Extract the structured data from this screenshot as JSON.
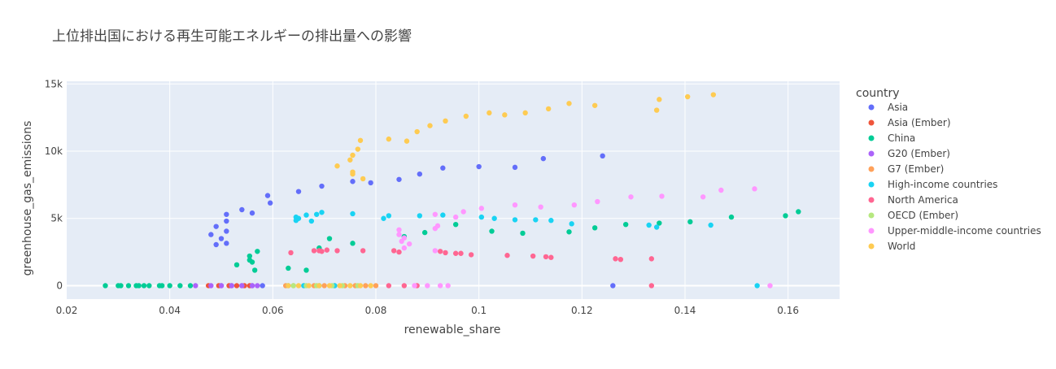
{
  "chart_data": {
    "type": "scatter",
    "title": "上位排出国における再生可能エネルギーの排出量への影響",
    "xlabel": "renewable_share",
    "ylabel": "greenhouse_gas_emissions",
    "xlim": [
      0.02,
      0.17
    ],
    "ylim": [
      -1000,
      15200
    ],
    "x_ticks": [
      0.02,
      0.04,
      0.06,
      0.08,
      0.1,
      0.12,
      0.14,
      0.16
    ],
    "x_tick_labels": [
      "0.02",
      "0.04",
      "0.06",
      "0.08",
      "0.1",
      "0.12",
      "0.14",
      "0.16"
    ],
    "y_ticks": [
      0,
      5000,
      10000,
      15000
    ],
    "y_tick_labels": [
      "0",
      "5k",
      "10k",
      "15k"
    ],
    "grid": true,
    "legend_title": "country",
    "legend_position": "right",
    "series": [
      {
        "name": "Asia",
        "color": "#636efa",
        "points": [
          [
            0.048,
            3800
          ],
          [
            0.049,
            3050
          ],
          [
            0.049,
            4400
          ],
          [
            0.05,
            3500
          ],
          [
            0.051,
            3150
          ],
          [
            0.051,
            4050
          ],
          [
            0.051,
            4800
          ],
          [
            0.051,
            5300
          ],
          [
            0.054,
            5650
          ],
          [
            0.056,
            5400
          ],
          [
            0.059,
            6700
          ],
          [
            0.0595,
            6150
          ],
          [
            0.065,
            7000
          ],
          [
            0.0695,
            7400
          ],
          [
            0.0755,
            7750
          ],
          [
            0.079,
            7650
          ],
          [
            0.0845,
            7900
          ],
          [
            0.0885,
            8300
          ],
          [
            0.093,
            8750
          ],
          [
            0.1,
            8850
          ],
          [
            0.107,
            8800
          ],
          [
            0.1125,
            9450
          ],
          [
            0.124,
            9650
          ],
          [
            0.126,
            0
          ],
          [
            0.05,
            0
          ],
          [
            0.052,
            0
          ],
          [
            0.054,
            0
          ],
          [
            0.056,
            0
          ],
          [
            0.058,
            0
          ]
        ]
      },
      {
        "name": "Asia (Ember)",
        "color": "#EF553B",
        "points": [
          [
            0.0475,
            0
          ],
          [
            0.0495,
            0
          ],
          [
            0.0515,
            0
          ],
          [
            0.053,
            0
          ],
          [
            0.0545,
            0
          ],
          [
            0.0555,
            0
          ]
        ]
      },
      {
        "name": "China",
        "color": "#00cc96",
        "points": [
          [
            0.0275,
            0
          ],
          [
            0.03,
            0
          ],
          [
            0.0305,
            0
          ],
          [
            0.032,
            0
          ],
          [
            0.0335,
            0
          ],
          [
            0.034,
            0
          ],
          [
            0.035,
            0
          ],
          [
            0.036,
            0
          ],
          [
            0.038,
            0
          ],
          [
            0.0385,
            0
          ],
          [
            0.04,
            0
          ],
          [
            0.042,
            0
          ],
          [
            0.044,
            0
          ],
          [
            0.053,
            1550
          ],
          [
            0.0555,
            1900
          ],
          [
            0.0555,
            2200
          ],
          [
            0.056,
            1750
          ],
          [
            0.0565,
            1150
          ],
          [
            0.057,
            2550
          ],
          [
            0.063,
            1300
          ],
          [
            0.0665,
            1150
          ],
          [
            0.069,
            2800
          ],
          [
            0.071,
            3500
          ],
          [
            0.0755,
            3150
          ],
          [
            0.0855,
            3650
          ],
          [
            0.0895,
            3950
          ],
          [
            0.0955,
            4550
          ],
          [
            0.1025,
            4050
          ],
          [
            0.1085,
            3900
          ],
          [
            0.1175,
            4000
          ],
          [
            0.1225,
            4300
          ],
          [
            0.1285,
            4550
          ],
          [
            0.135,
            4650
          ],
          [
            0.141,
            4750
          ],
          [
            0.149,
            5100
          ],
          [
            0.1595,
            5200
          ],
          [
            0.162,
            5500
          ]
        ]
      },
      {
        "name": "G20 (Ember)",
        "color": "#ab63fa",
        "points": [
          [
            0.045,
            0
          ],
          [
            0.048,
            0
          ],
          [
            0.05,
            0
          ],
          [
            0.052,
            0
          ],
          [
            0.054,
            0
          ],
          [
            0.056,
            0
          ],
          [
            0.057,
            0
          ]
        ]
      },
      {
        "name": "G7 (Ember)",
        "color": "#FFA15A",
        "points": [
          [
            0.0625,
            0
          ],
          [
            0.064,
            0
          ],
          [
            0.066,
            0
          ],
          [
            0.068,
            0
          ],
          [
            0.07,
            0
          ],
          [
            0.072,
            0
          ],
          [
            0.074,
            0
          ],
          [
            0.076,
            0
          ],
          [
            0.078,
            0
          ],
          [
            0.08,
            0
          ]
        ]
      },
      {
        "name": "High-income countries",
        "color": "#19d3f3",
        "points": [
          [
            0.0645,
            4850
          ],
          [
            0.0645,
            5100
          ],
          [
            0.065,
            5000
          ],
          [
            0.0665,
            5250
          ],
          [
            0.0675,
            4800
          ],
          [
            0.0685,
            5300
          ],
          [
            0.0695,
            5450
          ],
          [
            0.0755,
            5350
          ],
          [
            0.0815,
            5000
          ],
          [
            0.0825,
            5200
          ],
          [
            0.0885,
            5200
          ],
          [
            0.093,
            5250
          ],
          [
            0.1005,
            5100
          ],
          [
            0.103,
            5000
          ],
          [
            0.107,
            4900
          ],
          [
            0.111,
            4900
          ],
          [
            0.114,
            4850
          ],
          [
            0.118,
            4600
          ],
          [
            0.133,
            4500
          ],
          [
            0.1345,
            4350
          ],
          [
            0.145,
            4500
          ],
          [
            0.154,
            0
          ],
          [
            0.063,
            0
          ],
          [
            0.066,
            0
          ],
          [
            0.069,
            0
          ],
          [
            0.072,
            0
          ]
        ]
      },
      {
        "name": "North America",
        "color": "#FF6692",
        "points": [
          [
            0.0635,
            2450
          ],
          [
            0.068,
            2600
          ],
          [
            0.069,
            2600
          ],
          [
            0.0695,
            2550
          ],
          [
            0.0705,
            2650
          ],
          [
            0.0725,
            2600
          ],
          [
            0.0775,
            2600
          ],
          [
            0.0835,
            2600
          ],
          [
            0.0845,
            2500
          ],
          [
            0.0925,
            2550
          ],
          [
            0.0935,
            2450
          ],
          [
            0.0955,
            2400
          ],
          [
            0.0965,
            2400
          ],
          [
            0.0985,
            2300
          ],
          [
            0.1055,
            2250
          ],
          [
            0.1105,
            2200
          ],
          [
            0.113,
            2150
          ],
          [
            0.114,
            2100
          ],
          [
            0.1265,
            2000
          ],
          [
            0.1275,
            1950
          ],
          [
            0.1335,
            2000
          ],
          [
            0.1335,
            0
          ],
          [
            0.0825,
            0
          ],
          [
            0.0855,
            0
          ],
          [
            0.088,
            0
          ]
        ]
      },
      {
        "name": "OECD (Ember)",
        "color": "#B6E880",
        "points": [
          [
            0.064,
            0
          ],
          [
            0.0665,
            0
          ],
          [
            0.0685,
            0
          ],
          [
            0.0715,
            0
          ],
          [
            0.0735,
            0
          ],
          [
            0.0765,
            0
          ]
        ]
      },
      {
        "name": "Upper-middle-income countries",
        "color": "#FF97FF",
        "points": [
          [
            0.0845,
            3800
          ],
          [
            0.0845,
            4150
          ],
          [
            0.085,
            3300
          ],
          [
            0.0855,
            3550
          ],
          [
            0.0865,
            3100
          ],
          [
            0.0855,
            2800
          ],
          [
            0.0915,
            4250
          ],
          [
            0.0915,
            5300
          ],
          [
            0.092,
            4450
          ],
          [
            0.0915,
            2600
          ],
          [
            0.0955,
            5100
          ],
          [
            0.097,
            5500
          ],
          [
            0.1005,
            5750
          ],
          [
            0.107,
            6000
          ],
          [
            0.112,
            5850
          ],
          [
            0.1185,
            6000
          ],
          [
            0.123,
            6250
          ],
          [
            0.1295,
            6600
          ],
          [
            0.1355,
            6650
          ],
          [
            0.1435,
            6600
          ],
          [
            0.147,
            7100
          ],
          [
            0.1535,
            7200
          ],
          [
            0.1565,
            0
          ],
          [
            0.09,
            0
          ],
          [
            0.0925,
            0
          ],
          [
            0.094,
            0
          ],
          [
            0.0875,
            0
          ]
        ]
      },
      {
        "name": "World",
        "color": "#FECB52",
        "points": [
          [
            0.0725,
            8900
          ],
          [
            0.075,
            9350
          ],
          [
            0.0755,
            9700
          ],
          [
            0.0755,
            8300
          ],
          [
            0.0755,
            8450
          ],
          [
            0.0765,
            10150
          ],
          [
            0.077,
            10800
          ],
          [
            0.0775,
            7950
          ],
          [
            0.0825,
            10900
          ],
          [
            0.086,
            10750
          ],
          [
            0.088,
            11450
          ],
          [
            0.0905,
            11900
          ],
          [
            0.0935,
            12250
          ],
          [
            0.0975,
            12600
          ],
          [
            0.102,
            12850
          ],
          [
            0.105,
            12700
          ],
          [
            0.109,
            12850
          ],
          [
            0.1135,
            13150
          ],
          [
            0.1175,
            13550
          ],
          [
            0.1225,
            13400
          ],
          [
            0.1345,
            13050
          ],
          [
            0.135,
            13850
          ],
          [
            0.1405,
            14050
          ],
          [
            0.1455,
            14200
          ],
          [
            0.063,
            0
          ],
          [
            0.065,
            0
          ],
          [
            0.067,
            0
          ],
          [
            0.069,
            0
          ],
          [
            0.071,
            0
          ],
          [
            0.073,
            0
          ],
          [
            0.075,
            0
          ],
          [
            0.077,
            0
          ],
          [
            0.079,
            0
          ]
        ]
      }
    ]
  }
}
